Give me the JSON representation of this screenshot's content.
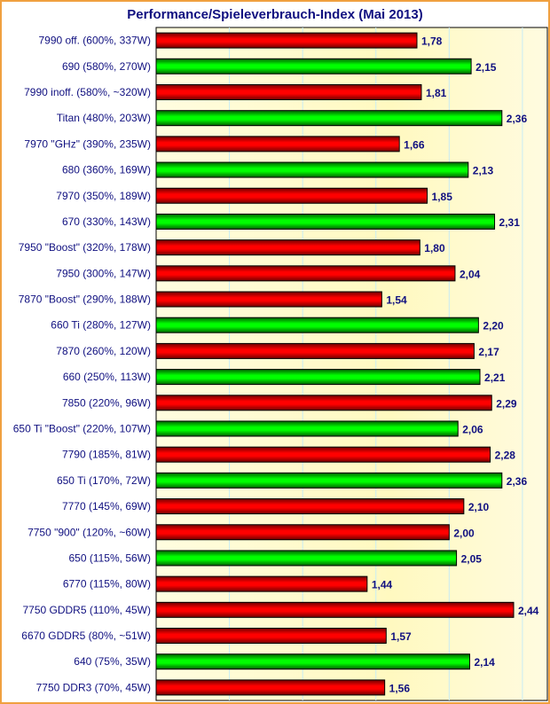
{
  "chart_data": {
    "type": "bar",
    "orientation": "horizontal",
    "title": "Performance/Spieleverbrauch-Index (Mai 2013)",
    "xlabel": "",
    "ylabel": "",
    "xlim": [
      0,
      2.67
    ],
    "grid": true,
    "grid_step": 0.5,
    "colors": {
      "red": "#ff0000",
      "green": "#00e000",
      "text": "#101080",
      "frame": "#f0a040"
    },
    "categories": [
      "7990 off. (600%, 337W)",
      "690 (580%, 270W)",
      "7990 inoff. (580%, ~320W)",
      "Titan (480%, 203W)",
      "7970 \"GHz\" (390%, 235W)",
      "680 (360%, 169W)",
      "7970 (350%, 189W)",
      "670 (330%, 143W)",
      "7950 \"Boost\" (320%, 178W)",
      "7950 (300%, 147W)",
      "7870 \"Boost\" (290%, 188W)",
      "660 Ti (280%, 127W)",
      "7870 (260%, 120W)",
      "660 (250%, 113W)",
      "7850 (220%, 96W)",
      "650 Ti \"Boost\" (220%, 107W)",
      "7790 (185%, 81W)",
      "650 Ti (170%, 72W)",
      "7770 (145%, 69W)",
      "7750 \"900\" (120%, ~60W)",
      "650 (115%, 56W)",
      "6770 (115%, 80W)",
      "7750 GDDR5 (110%, 45W)",
      "6670 GDDR5 (80%, ~51W)",
      "640 (75%, 35W)",
      "7750 DDR3 (70%, 45W)"
    ],
    "values": [
      1.78,
      2.15,
      1.81,
      2.36,
      1.66,
      2.13,
      1.85,
      2.31,
      1.8,
      2.04,
      1.54,
      2.2,
      2.17,
      2.21,
      2.29,
      2.06,
      2.28,
      2.36,
      2.1,
      2.0,
      2.05,
      1.44,
      2.44,
      1.57,
      2.14,
      1.56
    ],
    "value_labels": [
      "1,78",
      "2,15",
      "1,81",
      "2,36",
      "1,66",
      "2,13",
      "1,85",
      "2,31",
      "1,80",
      "2,04",
      "1,54",
      "2,20",
      "2,17",
      "2,21",
      "2,29",
      "2,06",
      "2,28",
      "2,36",
      "2,10",
      "2,00",
      "2,05",
      "1,44",
      "2,44",
      "1,57",
      "2,14",
      "1,56"
    ],
    "bar_colors": [
      "red",
      "green",
      "red",
      "green",
      "red",
      "green",
      "red",
      "green",
      "red",
      "red",
      "red",
      "green",
      "red",
      "green",
      "red",
      "green",
      "red",
      "green",
      "red",
      "red",
      "green",
      "red",
      "red",
      "red",
      "green",
      "red"
    ]
  }
}
